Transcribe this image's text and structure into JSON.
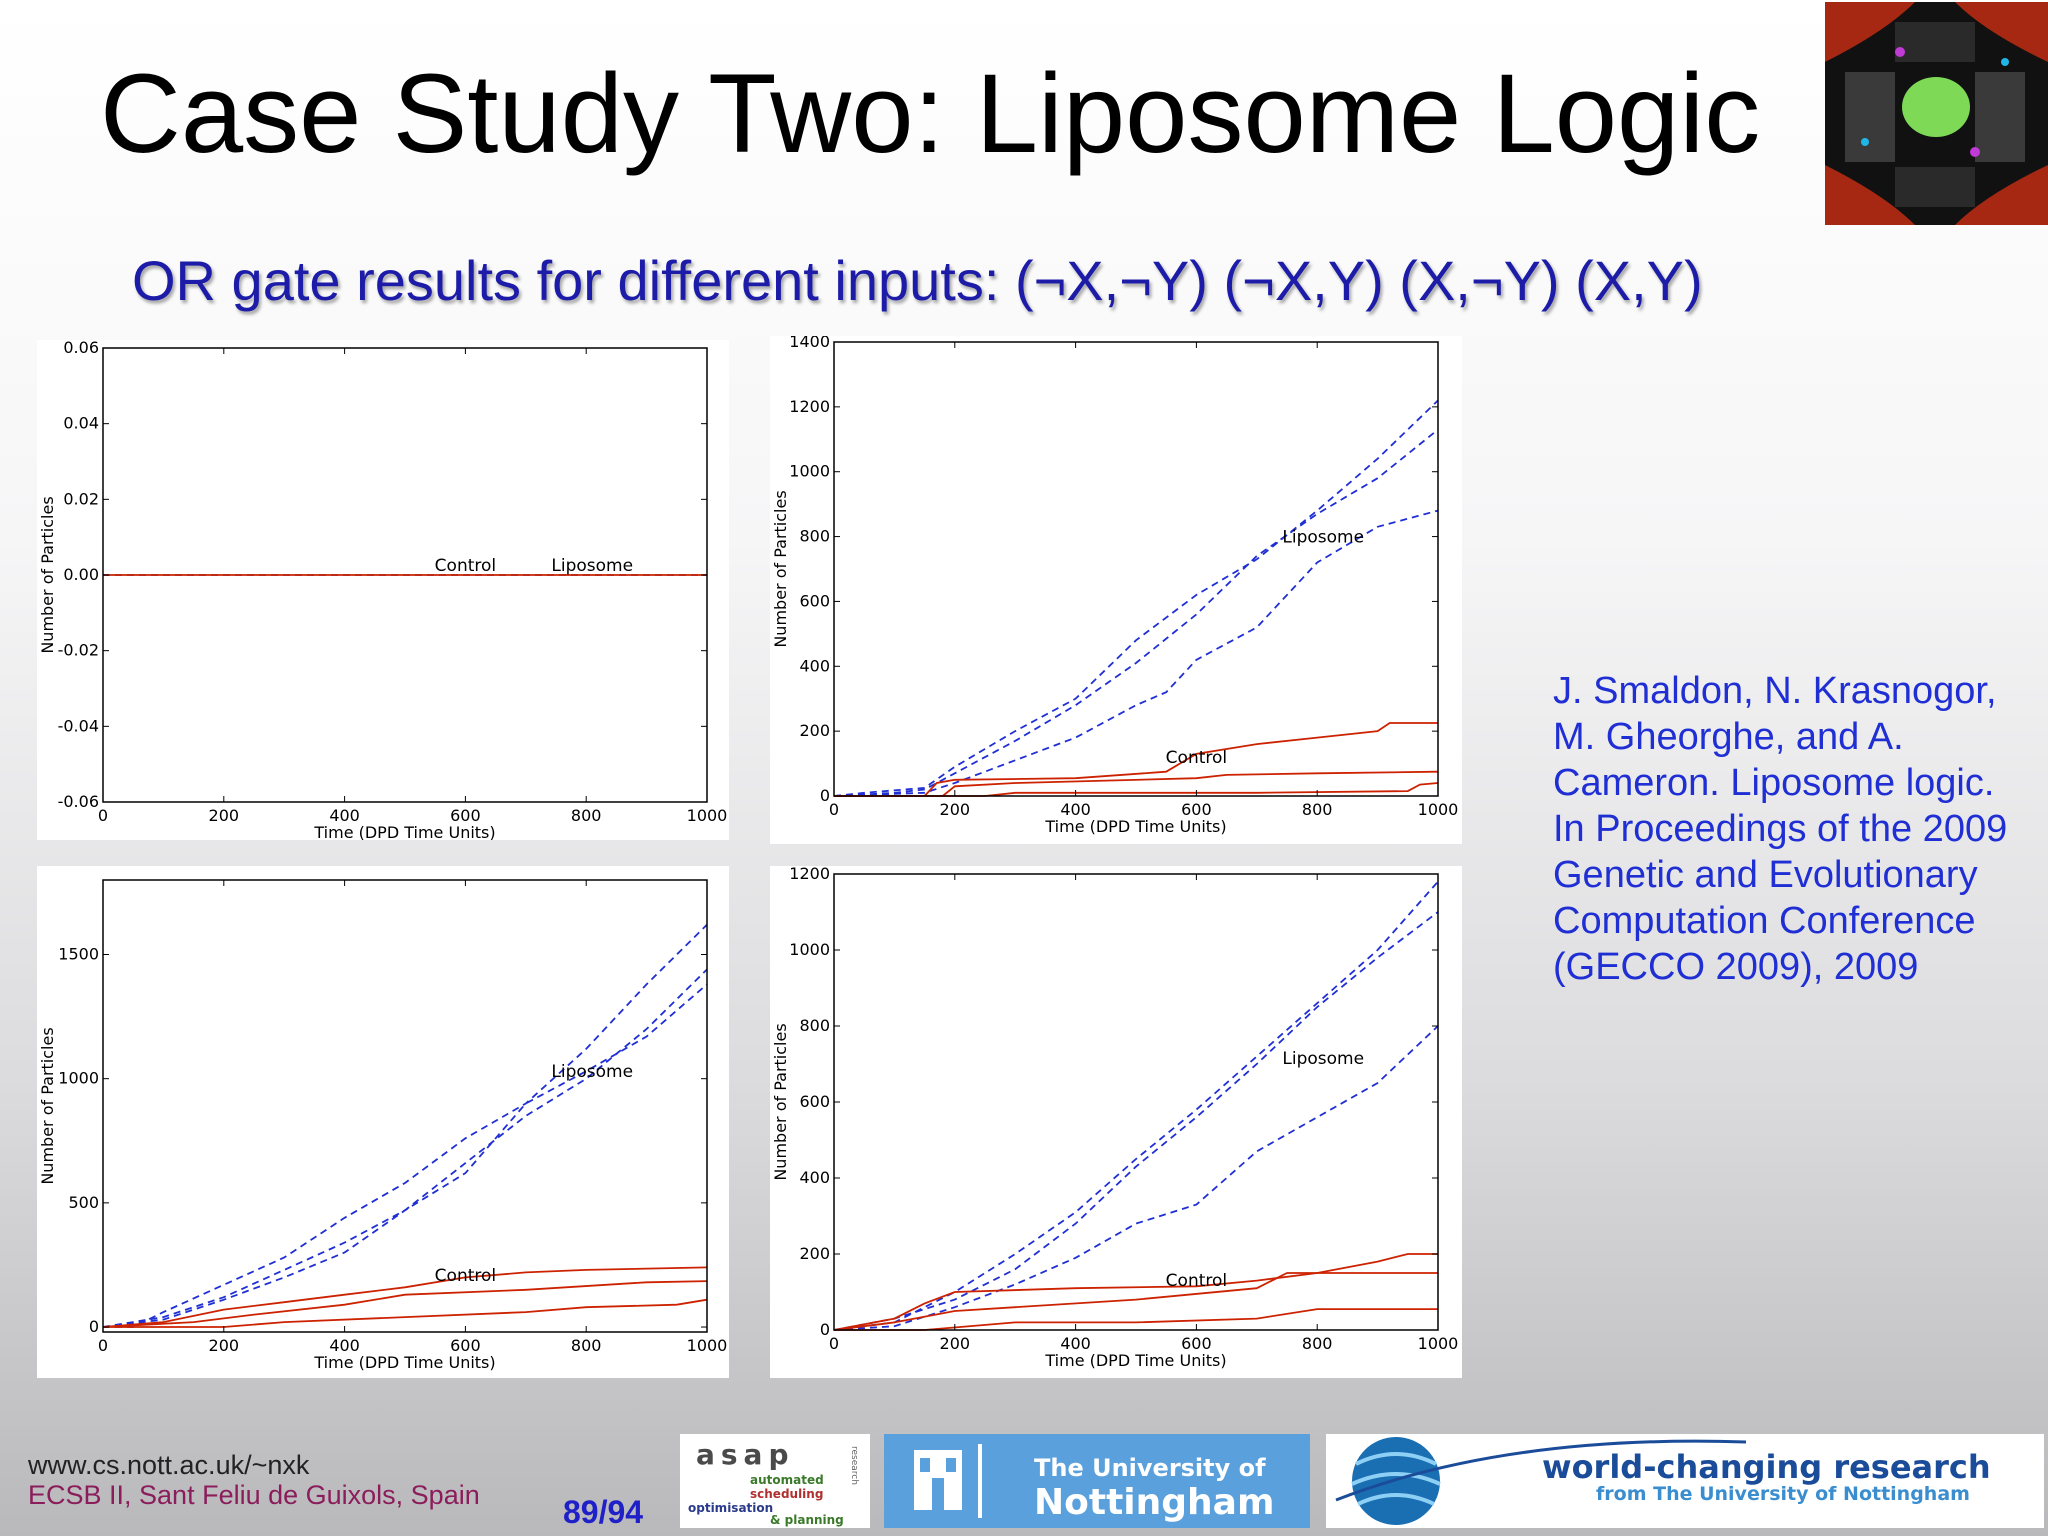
{
  "slide": {
    "title": "Case Study Two: Liposome Logic",
    "subtitle": "OR gate results for different inputs: (¬X,¬Y) (¬X,Y) (X,¬Y) (X,Y)"
  },
  "citation": "J. Smaldon, N. Krasnogor, M. Gheorghe, and A. Cameron. Liposome logic. In Proceedings of the 2009 Genetic and Evolutionary Computation Conference (GECCO 2009), 2009",
  "footer": {
    "url": "www.cs.nott.ac.uk/~nxk",
    "conference": "ECSB II, Sant Feliu de Guixols, Spain",
    "page": "89/94"
  },
  "logos": {
    "asap": {
      "title": "asap",
      "line1": "automated",
      "line2": "scheduling",
      "line3": "optimisation",
      "line4": "& planning",
      "side": "research"
    },
    "nottingham": {
      "line1": "The University of",
      "line2": "Nottingham"
    },
    "world": {
      "line1": "world-changing research",
      "line2": "from The University of Nottingham"
    }
  },
  "colors": {
    "liposome_series": "#1f2fd4",
    "control_series": "#cc2200",
    "citation": "#1f2fd4",
    "subtitle": "#1c1ca8"
  },
  "chart_data": [
    {
      "type": "line",
      "xlabel": "Time (DPD Time Units)",
      "ylabel": "Number of Particles",
      "xlim": [
        0,
        1000
      ],
      "ylim": [
        -0.06,
        0.06
      ],
      "xticks": [
        0,
        200,
        400,
        600,
        800,
        1000
      ],
      "yticks": [
        -0.06,
        -0.04,
        -0.02,
        0.0,
        0.02,
        0.04,
        0.06
      ],
      "ytick_labels": [
        "-0.06",
        "-0.04",
        "-0.02",
        "0.00",
        "0.02",
        "0.04",
        "0.06"
      ],
      "annotations": [
        {
          "text": "Control",
          "x": 600,
          "y": 0.0
        },
        {
          "text": "Liposome",
          "x": 810,
          "y": 0.0
        }
      ],
      "series": [
        {
          "group": "liposome",
          "style": "dashed",
          "points": [
            [
              0,
              0
            ],
            [
              1000,
              0
            ]
          ]
        },
        {
          "group": "control",
          "style": "solid",
          "points": [
            [
              0,
              0
            ],
            [
              1000,
              0
            ]
          ]
        }
      ]
    },
    {
      "type": "line",
      "xlabel": "Time (DPD Time Units)",
      "ylabel": "Number of Particles",
      "xlim": [
        0,
        1000
      ],
      "ylim": [
        0,
        1400
      ],
      "xticks": [
        0,
        200,
        400,
        600,
        800,
        1000
      ],
      "yticks": [
        0,
        200,
        400,
        600,
        800,
        1000,
        1200,
        1400
      ],
      "ytick_labels": [
        "0",
        "200",
        "400",
        "600",
        "800",
        "1000",
        "1200",
        "1400"
      ],
      "annotations": [
        {
          "text": "Liposome",
          "x": 810,
          "y": 770
        },
        {
          "text": "Control",
          "x": 600,
          "y": 90
        }
      ],
      "series": [
        {
          "group": "liposome",
          "style": "dashed",
          "points": [
            [
              0,
              0
            ],
            [
              50,
              10
            ],
            [
              150,
              25
            ],
            [
              200,
              90
            ],
            [
              300,
              200
            ],
            [
              400,
              300
            ],
            [
              500,
              480
            ],
            [
              600,
              620
            ],
            [
              700,
              730
            ],
            [
              800,
              880
            ],
            [
              900,
              1040
            ],
            [
              1000,
              1220
            ]
          ]
        },
        {
          "group": "liposome",
          "style": "dashed",
          "points": [
            [
              0,
              0
            ],
            [
              100,
              10
            ],
            [
              150,
              20
            ],
            [
              200,
              70
            ],
            [
              300,
              170
            ],
            [
              400,
              280
            ],
            [
              500,
              410
            ],
            [
              600,
              560
            ],
            [
              700,
              740
            ],
            [
              800,
              870
            ],
            [
              900,
              980
            ],
            [
              1000,
              1130
            ]
          ]
        },
        {
          "group": "liposome",
          "style": "dashed",
          "points": [
            [
              0,
              0
            ],
            [
              150,
              10
            ],
            [
              200,
              40
            ],
            [
              300,
              110
            ],
            [
              400,
              180
            ],
            [
              500,
              280
            ],
            [
              550,
              320
            ],
            [
              600,
              420
            ],
            [
              700,
              520
            ],
            [
              800,
              720
            ],
            [
              900,
              830
            ],
            [
              1000,
              880
            ]
          ]
        },
        {
          "group": "control",
          "style": "solid",
          "points": [
            [
              0,
              0
            ],
            [
              150,
              0
            ],
            [
              170,
              40
            ],
            [
              200,
              50
            ],
            [
              400,
              55
            ],
            [
              550,
              75
            ],
            [
              600,
              130
            ],
            [
              700,
              160
            ],
            [
              800,
              180
            ],
            [
              900,
              200
            ],
            [
              920,
              225
            ],
            [
              1000,
              225
            ]
          ]
        },
        {
          "group": "control",
          "style": "solid",
          "points": [
            [
              0,
              0
            ],
            [
              180,
              0
            ],
            [
              200,
              30
            ],
            [
              300,
              40
            ],
            [
              600,
              55
            ],
            [
              650,
              65
            ],
            [
              800,
              70
            ],
            [
              1000,
              75
            ]
          ]
        },
        {
          "group": "control",
          "style": "solid",
          "points": [
            [
              0,
              0
            ],
            [
              250,
              0
            ],
            [
              300,
              10
            ],
            [
              700,
              10
            ],
            [
              950,
              15
            ],
            [
              970,
              35
            ],
            [
              1000,
              40
            ]
          ]
        }
      ]
    },
    {
      "type": "line",
      "xlabel": "Time (DPD Time Units)",
      "ylabel": "Number of Particles",
      "xlim": [
        0,
        1000
      ],
      "ylim": [
        -20,
        1800
      ],
      "xticks": [
        0,
        200,
        400,
        600,
        800,
        1000
      ],
      "yticks": [
        0,
        500,
        1000,
        1500
      ],
      "ytick_labels": [
        "0",
        "500",
        "1000",
        "1500"
      ],
      "annotations": [
        {
          "text": "Liposome",
          "x": 810,
          "y": 990
        },
        {
          "text": "Control",
          "x": 600,
          "y": 170
        }
      ],
      "series": [
        {
          "group": "liposome",
          "style": "dashed",
          "points": [
            [
              0,
              0
            ],
            [
              50,
              0
            ],
            [
              100,
              60
            ],
            [
              200,
              170
            ],
            [
              300,
              280
            ],
            [
              400,
              440
            ],
            [
              500,
              580
            ],
            [
              600,
              760
            ],
            [
              700,
              900
            ],
            [
              800,
              1120
            ],
            [
              900,
              1380
            ],
            [
              1000,
              1620
            ]
          ]
        },
        {
          "group": "liposome",
          "style": "dashed",
          "points": [
            [
              0,
              0
            ],
            [
              100,
              40
            ],
            [
              200,
              120
            ],
            [
              300,
              230
            ],
            [
              400,
              340
            ],
            [
              500,
              470
            ],
            [
              600,
              660
            ],
            [
              700,
              850
            ],
            [
              800,
              1000
            ],
            [
              900,
              1200
            ],
            [
              1000,
              1440
            ]
          ]
        },
        {
          "group": "liposome",
          "style": "dashed",
          "points": [
            [
              0,
              0
            ],
            [
              100,
              30
            ],
            [
              200,
              110
            ],
            [
              300,
              200
            ],
            [
              400,
              300
            ],
            [
              500,
              470
            ],
            [
              600,
              620
            ],
            [
              700,
              900
            ],
            [
              800,
              1030
            ],
            [
              900,
              1170
            ],
            [
              1000,
              1380
            ]
          ]
        },
        {
          "group": "control",
          "style": "solid",
          "points": [
            [
              0,
              0
            ],
            [
              100,
              20
            ],
            [
              200,
              70
            ],
            [
              300,
              100
            ],
            [
              400,
              130
            ],
            [
              500,
              160
            ],
            [
              600,
              200
            ],
            [
              700,
              220
            ],
            [
              800,
              230
            ],
            [
              1000,
              240
            ]
          ]
        },
        {
          "group": "control",
          "style": "solid",
          "points": [
            [
              0,
              0
            ],
            [
              150,
              20
            ],
            [
              250,
              50
            ],
            [
              400,
              90
            ],
            [
              500,
              130
            ],
            [
              700,
              150
            ],
            [
              900,
              180
            ],
            [
              1000,
              185
            ]
          ]
        },
        {
          "group": "control",
          "style": "solid",
          "points": [
            [
              0,
              0
            ],
            [
              200,
              0
            ],
            [
              300,
              20
            ],
            [
              500,
              40
            ],
            [
              700,
              60
            ],
            [
              800,
              80
            ],
            [
              950,
              90
            ],
            [
              1000,
              110
            ]
          ]
        }
      ]
    },
    {
      "type": "line",
      "xlabel": "Time (DPD Time Units)",
      "ylabel": "Number of Particles",
      "xlim": [
        0,
        1000
      ],
      "ylim": [
        0,
        1200
      ],
      "xticks": [
        0,
        200,
        400,
        600,
        800,
        1000
      ],
      "yticks": [
        0,
        200,
        400,
        600,
        800,
        1000,
        1200
      ],
      "ytick_labels": [
        "0",
        "200",
        "400",
        "600",
        "800",
        "1000",
        "1200"
      ],
      "annotations": [
        {
          "text": "Liposome",
          "x": 810,
          "y": 690
        },
        {
          "text": "Control",
          "x": 600,
          "y": 105
        }
      ],
      "series": [
        {
          "group": "liposome",
          "style": "dashed",
          "points": [
            [
              0,
              0
            ],
            [
              100,
              20
            ],
            [
              200,
              100
            ],
            [
              300,
              200
            ],
            [
              400,
              310
            ],
            [
              500,
              450
            ],
            [
              600,
              580
            ],
            [
              700,
              720
            ],
            [
              800,
              860
            ],
            [
              900,
              1000
            ],
            [
              1000,
              1180
            ]
          ]
        },
        {
          "group": "liposome",
          "style": "dashed",
          "points": [
            [
              0,
              0
            ],
            [
              100,
              30
            ],
            [
              200,
              80
            ],
            [
              300,
              160
            ],
            [
              400,
              280
            ],
            [
              500,
              430
            ],
            [
              600,
              560
            ],
            [
              700,
              700
            ],
            [
              800,
              850
            ],
            [
              900,
              980
            ],
            [
              1000,
              1100
            ]
          ]
        },
        {
          "group": "liposome",
          "style": "dashed",
          "points": [
            [
              0,
              0
            ],
            [
              100,
              10
            ],
            [
              200,
              60
            ],
            [
              300,
              120
            ],
            [
              400,
              190
            ],
            [
              500,
              280
            ],
            [
              600,
              330
            ],
            [
              700,
              470
            ],
            [
              800,
              560
            ],
            [
              900,
              650
            ],
            [
              1000,
              800
            ]
          ]
        },
        {
          "group": "control",
          "style": "solid",
          "points": [
            [
              0,
              0
            ],
            [
              100,
              30
            ],
            [
              150,
              70
            ],
            [
              200,
              100
            ],
            [
              400,
              110
            ],
            [
              600,
              115
            ],
            [
              700,
              130
            ],
            [
              800,
              150
            ],
            [
              900,
              180
            ],
            [
              950,
              200
            ],
            [
              1000,
              200
            ]
          ]
        },
        {
          "group": "control",
          "style": "solid",
          "points": [
            [
              0,
              0
            ],
            [
              100,
              20
            ],
            [
              200,
              50
            ],
            [
              300,
              60
            ],
            [
              500,
              80
            ],
            [
              700,
              110
            ],
            [
              750,
              150
            ],
            [
              1000,
              150
            ]
          ]
        },
        {
          "group": "control",
          "style": "solid",
          "points": [
            [
              0,
              0
            ],
            [
              150,
              0
            ],
            [
              300,
              20
            ],
            [
              500,
              20
            ],
            [
              700,
              30
            ],
            [
              800,
              55
            ],
            [
              1000,
              55
            ]
          ]
        }
      ]
    }
  ]
}
